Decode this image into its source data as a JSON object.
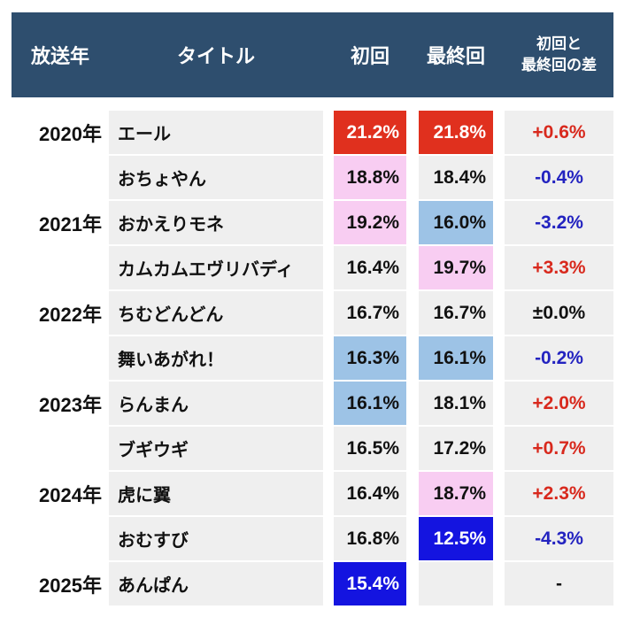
{
  "colors": {
    "header_bg": "#2e4e6e",
    "cell_bg": "#efefef",
    "highlight_red": "#e0301e",
    "highlight_pink": "#f8cdf2",
    "highlight_lightblue": "#9dc3e6",
    "highlight_blue": "#1414e0",
    "diff_up_text": "#d8291d",
    "diff_down_text": "#2323c0",
    "header_text": "#ffffff",
    "body_text": "#111111"
  },
  "chart_data": {
    "type": "table",
    "columns": [
      "放送年",
      "タイトル",
      "初回",
      "最終回",
      "初回と最終回の差"
    ],
    "header": {
      "year": "放送年",
      "title": "タイトル",
      "first": "初回",
      "last": "最終回",
      "diff_line1": "初回と",
      "diff_line2": "最終回の差"
    },
    "rows": [
      {
        "year": "2020年",
        "title": "エール",
        "first": "21.2%",
        "first_highlight": "red",
        "last": "21.8%",
        "last_highlight": "red",
        "diff": "+0.6%",
        "diff_trend": "up"
      },
      {
        "year": "",
        "title": "おちょやん",
        "first": "18.8%",
        "first_highlight": "pink",
        "last": "18.4%",
        "last_highlight": "none",
        "diff": "-0.4%",
        "diff_trend": "down"
      },
      {
        "year": "2021年",
        "title": "おかえりモネ",
        "first": "19.2%",
        "first_highlight": "pink",
        "last": "16.0%",
        "last_highlight": "lightblue",
        "diff": "-3.2%",
        "diff_trend": "down"
      },
      {
        "year": "",
        "title": "カムカムエヴリバディ",
        "first": "16.4%",
        "first_highlight": "none",
        "last": "19.7%",
        "last_highlight": "pink",
        "diff": "+3.3%",
        "diff_trend": "up"
      },
      {
        "year": "2022年",
        "title": "ちむどんどん",
        "first": "16.7%",
        "first_highlight": "none",
        "last": "16.7%",
        "last_highlight": "none",
        "diff": "±0.0%",
        "diff_trend": "neutral"
      },
      {
        "year": "",
        "title": "舞いあがれ！",
        "first": "16.3%",
        "first_highlight": "lightblue",
        "last": "16.1%",
        "last_highlight": "lightblue",
        "diff": "-0.2%",
        "diff_trend": "down"
      },
      {
        "year": "2023年",
        "title": "らんまん",
        "first": "16.1%",
        "first_highlight": "lightblue",
        "last": "18.1%",
        "last_highlight": "none",
        "diff": "+2.0%",
        "diff_trend": "up"
      },
      {
        "year": "",
        "title": "ブギウギ",
        "first": "16.5%",
        "first_highlight": "none",
        "last": "17.2%",
        "last_highlight": "none",
        "diff": "+0.7%",
        "diff_trend": "up"
      },
      {
        "year": "2024年",
        "title": "虎に翼",
        "first": "16.4%",
        "first_highlight": "none",
        "last": "18.7%",
        "last_highlight": "pink",
        "diff": "+2.3%",
        "diff_trend": "up"
      },
      {
        "year": "",
        "title": "おむすび",
        "first": "16.8%",
        "first_highlight": "none",
        "last": "12.5%",
        "last_highlight": "blue",
        "diff": "-4.3%",
        "diff_trend": "down"
      },
      {
        "year": "2025年",
        "title": "あんぱん",
        "first": "15.4%",
        "first_highlight": "blue",
        "last": "",
        "last_highlight": "none",
        "diff": "-",
        "diff_trend": "neutral"
      }
    ]
  }
}
